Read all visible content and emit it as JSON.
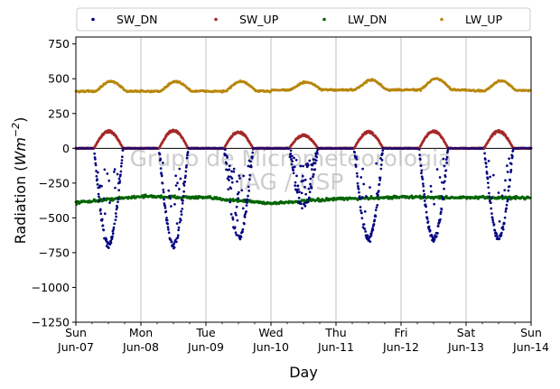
{
  "chart_data": {
    "type": "scatter",
    "ylabel_main": "Radiation (",
    "ylabel_unit_base": "Wm",
    "ylabel_unit_exp": "−2",
    "ylabel_close": ")",
    "xlabel": "Day",
    "ylim": [
      -1250,
      800
    ],
    "yticks": [
      750,
      500,
      250,
      0,
      -250,
      -500,
      -750,
      -1000,
      -1250
    ],
    "ytick_labels": [
      "750",
      "500",
      "250",
      "0",
      "−250",
      "−500",
      "−750",
      "−1000",
      "−1250"
    ],
    "xlim_days": [
      0,
      7
    ],
    "xticks": [
      {
        "day": 0,
        "weekday": "Sun",
        "date": "Jun-07"
      },
      {
        "day": 1,
        "weekday": "Mon",
        "date": "Jun-08"
      },
      {
        "day": 2,
        "weekday": "Tue",
        "date": "Jun-09"
      },
      {
        "day": 3,
        "weekday": "Wed",
        "date": "Jun-10"
      },
      {
        "day": 4,
        "weekday": "Thu",
        "date": "Jun-11"
      },
      {
        "day": 5,
        "weekday": "Fri",
        "date": "Jun-12"
      },
      {
        "day": 6,
        "weekday": "Sat",
        "date": "Jun-13"
      },
      {
        "day": 7,
        "weekday": "Sun",
        "date": "Jun-14"
      }
    ],
    "grid": "x-major",
    "zero_line": true,
    "legend_position": "top",
    "watermark": [
      "Grupo de Micrometeorologia",
      "IAG / USP"
    ],
    "series": [
      {
        "name": "SW_DN",
        "color": "#00007f",
        "daytime_min": [
          -690,
          -700,
          -640,
          -420,
          -650,
          -650,
          -640
        ],
        "daytime_min_hour": [
          12.6,
          12.6,
          12.4,
          12.2,
          12.6,
          12.6,
          12.5
        ]
      },
      {
        "name": "SW_UP",
        "color": "#a52a2a",
        "daytime_max": [
          125,
          130,
          120,
          95,
          120,
          125,
          125
        ]
      },
      {
        "name": "LW_DN",
        "color": "#006400",
        "daily_mean": [
          -390,
          -345,
          -355,
          -395,
          -365,
          -350,
          -355
        ]
      },
      {
        "name": "LW_UP",
        "color": "#b8860b",
        "night_level": [
          410,
          410,
          410,
          420,
          420,
          420,
          415
        ],
        "day_peak": [
          480,
          480,
          480,
          475,
          490,
          500,
          485
        ]
      }
    ]
  }
}
